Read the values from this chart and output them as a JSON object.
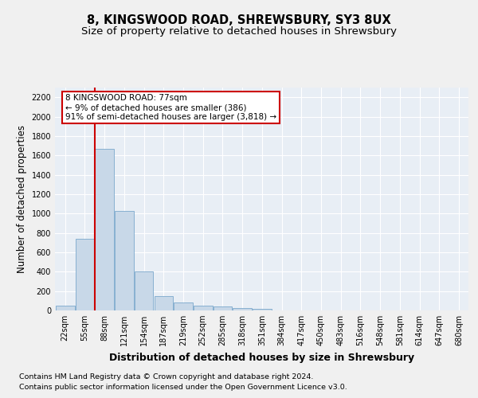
{
  "title_line1": "8, KINGSWOOD ROAD, SHREWSBURY, SY3 8UX",
  "title_line2": "Size of property relative to detached houses in Shrewsbury",
  "xlabel": "Distribution of detached houses by size in Shrewsbury",
  "ylabel": "Number of detached properties",
  "bar_values": [
    50,
    740,
    1670,
    1030,
    405,
    150,
    85,
    48,
    38,
    28,
    18,
    0,
    0,
    0,
    0,
    0,
    0,
    0,
    0,
    0,
    0
  ],
  "bar_labels": [
    "22sqm",
    "55sqm",
    "88sqm",
    "121sqm",
    "154sqm",
    "187sqm",
    "219sqm",
    "252sqm",
    "285sqm",
    "318sqm",
    "351sqm",
    "384sqm",
    "417sqm",
    "450sqm",
    "483sqm",
    "516sqm",
    "548sqm",
    "581sqm",
    "614sqm",
    "647sqm",
    "680sqm"
  ],
  "n_bars": 21,
  "bar_color": "#c8d8e8",
  "bar_edge_color": "#7aa8cc",
  "annotation_text": "8 KINGSWOOD ROAD: 77sqm\n← 9% of detached houses are smaller (386)\n91% of semi-detached houses are larger (3,818) →",
  "annotation_box_color": "#ffffff",
  "annotation_border_color": "#cc0000",
  "vline_color": "#cc0000",
  "ylim": [
    0,
    2300
  ],
  "yticks": [
    0,
    200,
    400,
    600,
    800,
    1000,
    1200,
    1400,
    1600,
    1800,
    2000,
    2200
  ],
  "bg_color": "#f0f0f0",
  "plot_bg_color": "#e8eef5",
  "grid_color": "#ffffff",
  "footer_line1": "Contains HM Land Registry data © Crown copyright and database right 2024.",
  "footer_line2": "Contains public sector information licensed under the Open Government Licence v3.0.",
  "title_fontsize": 10.5,
  "subtitle_fontsize": 9.5,
  "tick_fontsize": 7,
  "ylabel_fontsize": 8.5,
  "xlabel_fontsize": 9,
  "annotation_fontsize": 7.5,
  "footer_fontsize": 6.8
}
